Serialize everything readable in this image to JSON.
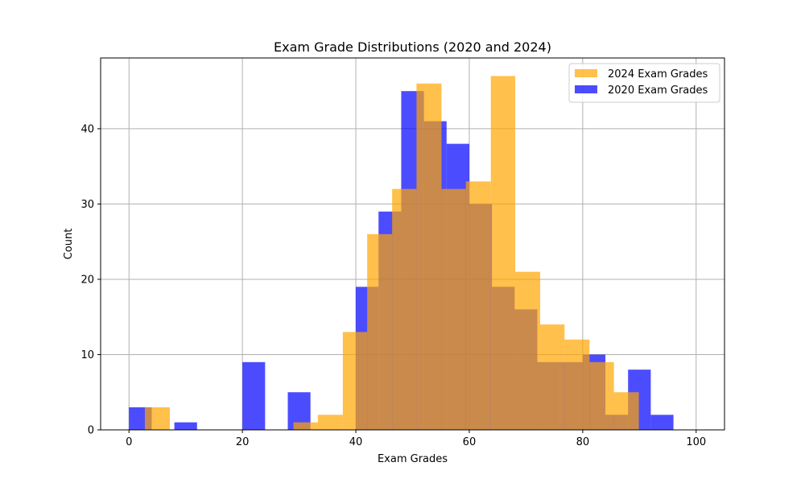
{
  "chart_data": {
    "type": "bar",
    "title": "Exam Grade Distributions (2020 and 2024)",
    "xlabel": "Exam Grades",
    "ylabel": "Count",
    "xlim": [
      -5,
      105
    ],
    "ylim": [
      0,
      49.4
    ],
    "x_ticks": [
      0,
      20,
      40,
      60,
      80,
      100
    ],
    "y_ticks": [
      0,
      10,
      20,
      30,
      40
    ],
    "grid": true,
    "legend_position": "top-right",
    "series": [
      {
        "name": "2020 Exam Grades",
        "color": "#0000ff",
        "opacity": 0.7,
        "bin_width": 4,
        "bins": [
          {
            "x0": 0,
            "x1": 4,
            "count": 3
          },
          {
            "x0": 8,
            "x1": 12,
            "count": 1
          },
          {
            "x0": 20,
            "x1": 24,
            "count": 9
          },
          {
            "x0": 28,
            "x1": 32,
            "count": 5
          },
          {
            "x0": 40,
            "x1": 44,
            "count": 19
          },
          {
            "x0": 44,
            "x1": 48,
            "count": 29
          },
          {
            "x0": 48,
            "x1": 52,
            "count": 45
          },
          {
            "x0": 52,
            "x1": 56,
            "count": 41
          },
          {
            "x0": 56,
            "x1": 60,
            "count": 38
          },
          {
            "x0": 60,
            "x1": 64,
            "count": 30
          },
          {
            "x0": 64,
            "x1": 68,
            "count": 19
          },
          {
            "x0": 68,
            "x1": 72,
            "count": 16
          },
          {
            "x0": 72,
            "x1": 76,
            "count": 9
          },
          {
            "x0": 76,
            "x1": 80,
            "count": 9
          },
          {
            "x0": 80,
            "x1": 84,
            "count": 10
          },
          {
            "x0": 84,
            "x1": 88,
            "count": 2
          },
          {
            "x0": 88,
            "x1": 92,
            "count": 8
          },
          {
            "x0": 92,
            "x1": 96,
            "count": 2
          }
        ]
      },
      {
        "name": "2024 Exam Grades",
        "color": "#ffa500",
        "opacity": 0.7,
        "bin_width": 4.35,
        "bins": [
          {
            "x0": 2.8,
            "x1": 7.2,
            "count": 3
          },
          {
            "x0": 29.0,
            "x1": 33.3,
            "count": 1
          },
          {
            "x0": 33.3,
            "x1": 37.7,
            "count": 2
          },
          {
            "x0": 37.7,
            "x1": 42.0,
            "count": 13
          },
          {
            "x0": 42.0,
            "x1": 46.4,
            "count": 26
          },
          {
            "x0": 46.4,
            "x1": 50.7,
            "count": 32
          },
          {
            "x0": 50.7,
            "x1": 55.1,
            "count": 46
          },
          {
            "x0": 55.1,
            "x1": 59.4,
            "count": 32
          },
          {
            "x0": 59.4,
            "x1": 63.8,
            "count": 33
          },
          {
            "x0": 63.8,
            "x1": 68.1,
            "count": 47
          },
          {
            "x0": 68.1,
            "x1": 72.5,
            "count": 21
          },
          {
            "x0": 72.5,
            "x1": 76.8,
            "count": 14
          },
          {
            "x0": 76.8,
            "x1": 81.2,
            "count": 12
          },
          {
            "x0": 81.2,
            "x1": 85.5,
            "count": 9
          },
          {
            "x0": 85.5,
            "x1": 89.9,
            "count": 5
          }
        ]
      }
    ]
  }
}
